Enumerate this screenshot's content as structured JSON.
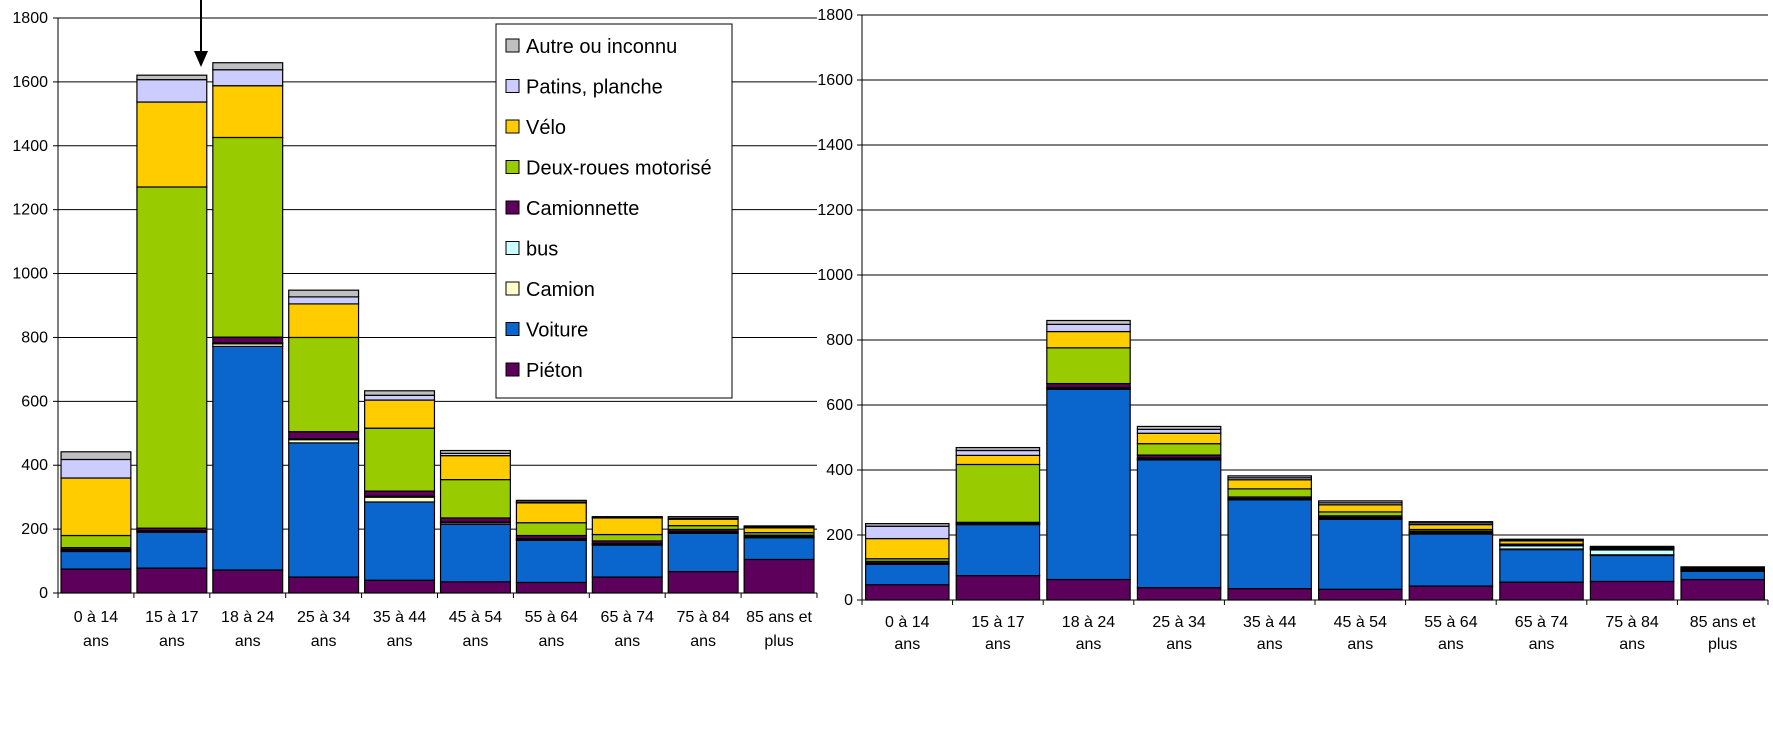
{
  "colors": {
    "Piéton": "#5c005c",
    "Voiture": "#0a66cc",
    "Camion": "#ffffcc",
    "bus": "#ccffff",
    "Camionnette": "#5c005c",
    "Deux-roues motorisé": "#99cc00",
    "Vélo": "#ffcc00",
    "Patins, planche": "#ccccff",
    "Autre ou inconnu": "#c0c0c0"
  },
  "chart_data": [
    {
      "type": "bar",
      "stacked": true,
      "categories": [
        "0 à 14 ans",
        "15 à 17 ans",
        "18 à 24 ans",
        "25 à 34 ans",
        "35 à 44 ans",
        "45 à 54 ans",
        "55 à 64 ans",
        "65 à 74 ans",
        "75 à 84 ans",
        "85 ans et plus"
      ],
      "ylim": [
        0,
        1800
      ],
      "yticks": [
        0,
        200,
        400,
        600,
        800,
        1000,
        1200,
        1400,
        1600,
        1800
      ],
      "grid": true,
      "legend_placement": "top-center",
      "legend_order": [
        "Autre ou inconnu",
        "Patins, planche",
        "Vélo",
        "Deux-roues motorisé",
        "Camionnette",
        "bus",
        "Camion",
        "Voiture",
        "Piéton"
      ],
      "annotation": "arrow pointing down at 15 à 17 ans",
      "series": [
        {
          "name": "Piéton",
          "values": [
            75,
            78,
            72,
            50,
            40,
            35,
            33,
            50,
            67,
            105
          ]
        },
        {
          "name": "Voiture",
          "values": [
            55,
            112,
            700,
            420,
            245,
            180,
            132,
            100,
            120,
            68
          ]
        },
        {
          "name": "Camion",
          "values": [
            4,
            3,
            8,
            10,
            15,
            5,
            3,
            3,
            3,
            2
          ]
        },
        {
          "name": "bus",
          "values": [
            2,
            2,
            3,
            3,
            3,
            2,
            2,
            2,
            3,
            2
          ]
        },
        {
          "name": "Camionnette",
          "values": [
            6,
            8,
            18,
            22,
            16,
            13,
            10,
            8,
            6,
            4
          ]
        },
        {
          "name": "Deux-roues motorisé",
          "values": [
            38,
            1068,
            625,
            295,
            197,
            120,
            40,
            20,
            12,
            8
          ]
        },
        {
          "name": "Vélo",
          "values": [
            180,
            266,
            162,
            105,
            88,
            75,
            62,
            52,
            20,
            15
          ]
        },
        {
          "name": "Patins, planche",
          "values": [
            58,
            70,
            50,
            22,
            15,
            7,
            3,
            2,
            3,
            3
          ]
        },
        {
          "name": "Autre ou inconnu",
          "values": [
            24,
            14,
            22,
            21,
            14,
            9,
            5,
            2,
            5,
            3
          ]
        }
      ]
    },
    {
      "type": "bar",
      "stacked": true,
      "categories": [
        "0 à 14 ans",
        "15 à 17 ans",
        "18 à 24 ans",
        "25 à 34 ans",
        "35 à 44 ans",
        "45 à 54 ans",
        "55 à 64 ans",
        "65 à 74 ans",
        "75 à 84 ans",
        "85 ans et plus"
      ],
      "ylim": [
        0,
        1800
      ],
      "yticks": [
        0,
        200,
        400,
        600,
        800,
        1000,
        1200,
        1400,
        1600,
        1800
      ],
      "grid": true,
      "series": [
        {
          "name": "Piéton",
          "values": [
            47,
            75,
            63,
            38,
            35,
            33,
            43,
            55,
            57,
            63
          ]
        },
        {
          "name": "Voiture",
          "values": [
            63,
            157,
            585,
            393,
            273,
            215,
            160,
            100,
            80,
            25
          ]
        },
        {
          "name": "Camion",
          "values": [
            2,
            2,
            3,
            3,
            2,
            3,
            2,
            2,
            2,
            1
          ]
        },
        {
          "name": "bus",
          "values": [
            2,
            2,
            3,
            3,
            2,
            3,
            2,
            10,
            15,
            2
          ]
        },
        {
          "name": "Camionnette",
          "values": [
            5,
            3,
            12,
            9,
            5,
            5,
            5,
            3,
            3,
            3
          ]
        },
        {
          "name": "Deux-roues motorisé",
          "values": [
            8,
            178,
            110,
            35,
            25,
            12,
            5,
            2,
            1,
            1
          ]
        },
        {
          "name": "Vélo",
          "values": [
            62,
            28,
            50,
            32,
            28,
            22,
            15,
            10,
            3,
            3
          ]
        },
        {
          "name": "Patins, planche",
          "values": [
            38,
            15,
            22,
            12,
            6,
            6,
            5,
            3,
            2,
            2
          ]
        },
        {
          "name": "Autre ou inconnu",
          "values": [
            8,
            9,
            12,
            9,
            6,
            6,
            4,
            2,
            2,
            2
          ]
        }
      ]
    }
  ]
}
